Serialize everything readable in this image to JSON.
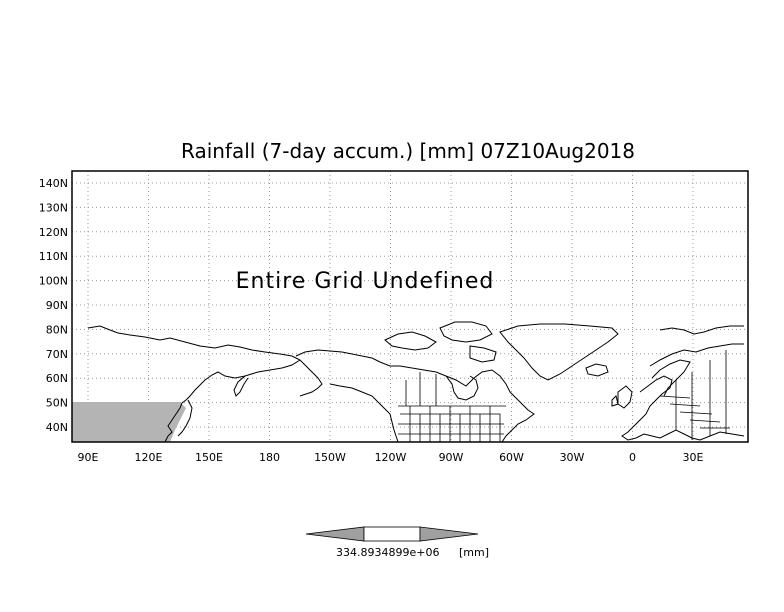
{
  "title": "Rainfall (7-day accum.) [mm] 07Z10Aug2018",
  "message": "Entire Grid Undefined",
  "lat_labels": [
    "140N",
    "130N",
    "120N",
    "110N",
    "100N",
    "90N",
    "80N",
    "70N",
    "60N",
    "50N",
    "40N"
  ],
  "lon_labels": [
    "90E",
    "120E",
    "150E",
    "180",
    "150W",
    "120W",
    "90W",
    "60W",
    "30W",
    "0",
    "30E"
  ],
  "colorbar": {
    "value_label": "334.8934899e+06",
    "unit_label": "[mm]",
    "fill_color": "#a0a0a0"
  },
  "colors": {
    "shaded_region": "#b4b4b4",
    "background": "#ffffff",
    "lines": "#000000"
  },
  "icons": {
    "colorbar_left": "left-triangle",
    "colorbar_right": "right-triangle"
  }
}
